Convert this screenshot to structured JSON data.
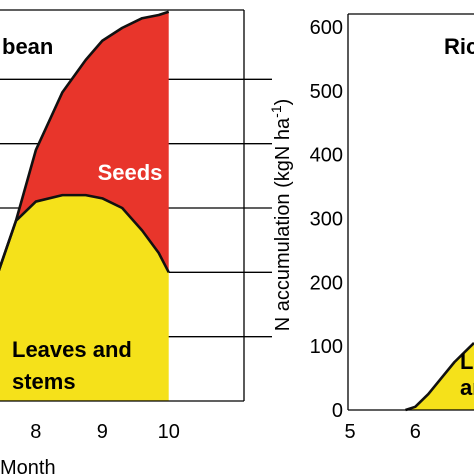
{
  "chart_data": [
    {
      "type": "area",
      "title_fragment": "bean",
      "xlabel_fragment": "Month",
      "x_ticks": [
        8,
        9,
        10
      ],
      "xlim": [
        7.4,
        10.2
      ],
      "ylim": [
        0,
        600
      ],
      "grid": true,
      "series": [
        {
          "name": "Leaves and stems",
          "label_lines": [
            "Leaves and",
            "stems"
          ],
          "color": "#f5e11a",
          "x": [
            7.4,
            7.7,
            8.0,
            8.4,
            8.75,
            9.0,
            9.3,
            9.6,
            9.85,
            10.0
          ],
          "y": [
            190,
            280,
            310,
            320,
            320,
            315,
            300,
            265,
            230,
            200
          ]
        },
        {
          "name": "Seeds",
          "label_lines": [
            "Seeds"
          ],
          "color": "#e8352b",
          "x": [
            7.4,
            7.7,
            8.0,
            8.4,
            8.75,
            9.0,
            9.3,
            9.6,
            9.85,
            10.0
          ],
          "y": [
            190,
            280,
            390,
            480,
            530,
            560,
            580,
            595,
            600,
            605
          ]
        }
      ]
    },
    {
      "type": "area",
      "title_fragment": "Ric",
      "ylabel": "N accumulation (kgN ha",
      "ylabel_superscript": "-1",
      "ylabel_close": ")",
      "y_ticks": [
        0,
        100,
        200,
        300,
        400,
        500,
        600
      ],
      "x_ticks": [
        5,
        6
      ],
      "xlim": [
        5,
        6.9
      ],
      "ylim": [
        0,
        600
      ],
      "grid": false,
      "series": [
        {
          "name": "Leaves and stems",
          "label_lines": [
            "L",
            "an"
          ],
          "color": "#f5e11a",
          "x": [
            5.85,
            6.0,
            6.2,
            6.4,
            6.6,
            6.8,
            6.9
          ],
          "y": [
            0,
            5,
            25,
            50,
            75,
            95,
            105
          ]
        }
      ]
    }
  ]
}
